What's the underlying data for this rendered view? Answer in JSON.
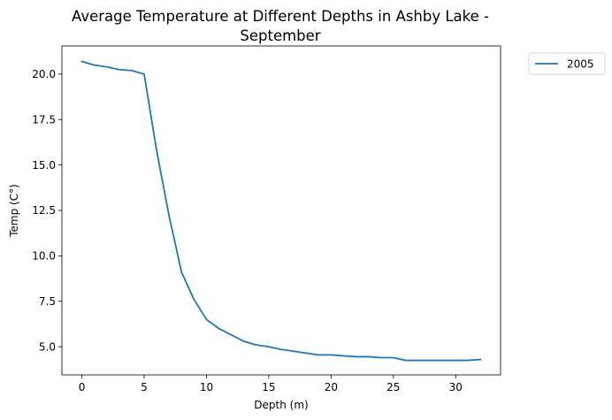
{
  "chart_data": {
    "type": "line",
    "title_lines": [
      "Average Temperature at Different Depths in Ashby Lake -",
      "September"
    ],
    "xlabel": "Depth (m)",
    "ylabel": "Temp (C°)",
    "xlim": [
      -1.6,
      33.6
    ],
    "ylim": [
      3.45,
      21.55
    ],
    "xticks": [
      0,
      5,
      10,
      15,
      20,
      25,
      30
    ],
    "yticks": [
      5.0,
      7.5,
      10.0,
      12.5,
      15.0,
      17.5,
      20.0
    ],
    "xtick_labels": [
      "0",
      "5",
      "10",
      "15",
      "20",
      "25",
      "30"
    ],
    "ytick_labels": [
      "5.0",
      "7.5",
      "10.0",
      "12.5",
      "15.0",
      "17.5",
      "20.0"
    ],
    "grid": false,
    "legend_position": "outside-top-right",
    "series": [
      {
        "name": "2005",
        "color": "#1f77b4",
        "x": [
          0,
          1,
          2,
          3,
          4,
          5,
          6,
          7,
          8,
          9,
          10,
          11,
          12,
          13,
          14,
          15,
          16,
          17,
          18,
          19,
          20,
          21,
          22,
          23,
          24,
          25,
          26,
          27,
          28,
          29,
          30,
          31,
          32
        ],
        "y": [
          20.7,
          20.5,
          20.4,
          20.25,
          20.2,
          20.0,
          15.8,
          12.2,
          9.1,
          7.6,
          6.5,
          6.0,
          5.65,
          5.3,
          5.1,
          5.0,
          4.85,
          4.75,
          4.65,
          4.55,
          4.55,
          4.5,
          4.45,
          4.45,
          4.4,
          4.4,
          4.25,
          4.25,
          4.25,
          4.25,
          4.25,
          4.25,
          4.3
        ]
      }
    ]
  }
}
